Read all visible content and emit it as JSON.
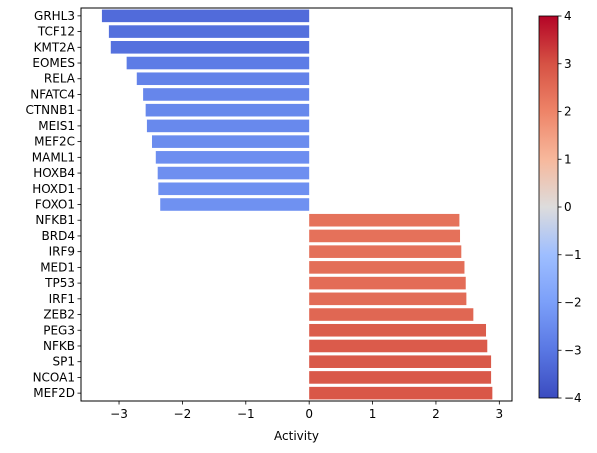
{
  "chart_data": {
    "type": "bar",
    "orientation": "horizontal",
    "categories": [
      "GRHL3",
      "TCF12",
      "KMT2A",
      "EOMES",
      "RELA",
      "NFATC4",
      "CTNNB1",
      "MEIS1",
      "MEF2C",
      "MAML1",
      "HOXB4",
      "HOXD1",
      "FOXO1",
      "NFKB1",
      "BRD4",
      "IRF9",
      "MED1",
      "TP53",
      "IRF1",
      "ZEB2",
      "PEG3",
      "NFKB",
      "SP1",
      "NCOA1",
      "MEF2D"
    ],
    "values": [
      -3.27,
      -3.16,
      -3.13,
      -2.88,
      -2.72,
      -2.62,
      -2.58,
      -2.56,
      -2.48,
      -2.42,
      -2.39,
      -2.38,
      -2.35,
      2.37,
      2.38,
      2.4,
      2.45,
      2.47,
      2.48,
      2.59,
      2.79,
      2.81,
      2.87,
      2.87,
      2.89
    ],
    "xlabel": "Activity",
    "ylabel": "",
    "title": "",
    "xlim": [
      -3.6,
      3.2
    ],
    "xticks": [
      -3,
      -2,
      -1,
      0,
      1,
      2,
      3
    ],
    "xtick_labels": [
      "−3",
      "−2",
      "−1",
      "0",
      "1",
      "2",
      "3"
    ],
    "grid": false,
    "colormap": "coolwarm",
    "colorbar": {
      "range": [
        -4,
        4
      ],
      "ticks": [
        -4,
        -3,
        -2,
        -1,
        0,
        1,
        2,
        3,
        4
      ],
      "tick_labels": [
        "−4",
        "−3",
        "−2",
        "−1",
        "0",
        "1",
        "2",
        "3",
        "4"
      ],
      "placement": "right"
    }
  }
}
